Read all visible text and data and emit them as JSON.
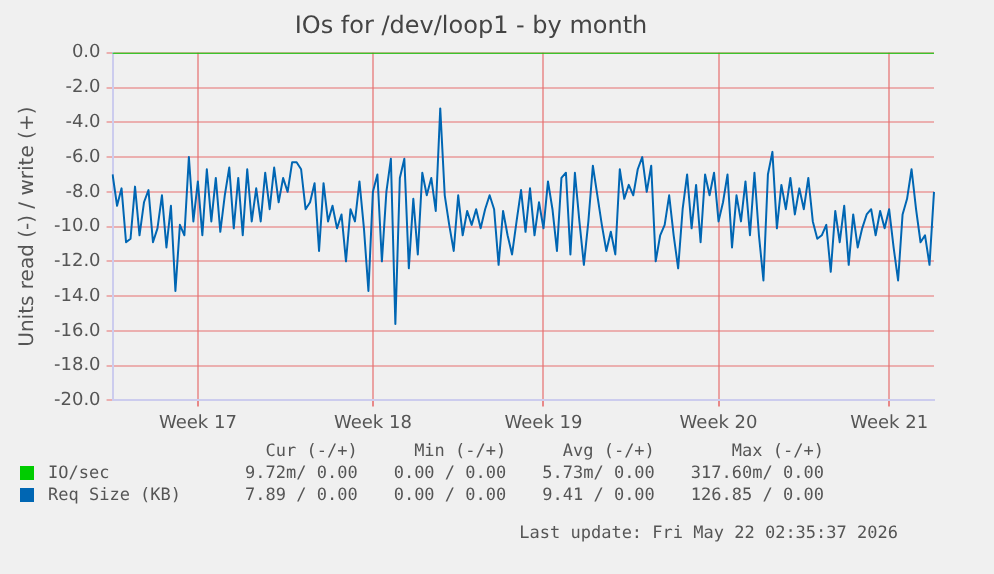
{
  "chart_data": {
    "type": "line",
    "title": "IOs for /dev/loop1 - by month",
    "ylabel": "Units read (-) / write (+)",
    "categories": [
      null,
      null,
      null,
      null,
      null,
      null,
      null,
      null,
      null,
      null,
      null,
      null,
      null,
      null,
      null,
      null,
      null,
      null,
      null,
      "Week 17",
      null,
      null,
      null,
      null,
      null,
      null,
      null,
      null,
      null,
      null,
      null,
      null,
      null,
      null,
      null,
      null,
      null,
      null,
      null,
      null,
      null,
      null,
      null,
      null,
      null,
      null,
      null,
      null,
      null,
      null,
      null,
      null,
      null,
      null,
      null,
      null,
      null,
      null,
      "Week 18",
      null,
      null,
      null,
      null,
      null,
      null,
      null,
      null,
      null,
      null,
      null,
      null,
      null,
      null,
      null,
      null,
      null,
      null,
      null,
      null,
      null,
      null,
      null,
      null,
      null,
      null,
      null,
      null,
      null,
      null,
      null,
      null,
      null,
      null,
      null,
      null,
      null,
      "Week 19",
      null,
      null,
      null,
      null,
      null,
      null,
      null,
      null,
      null,
      null,
      null,
      null,
      null,
      null,
      null,
      null,
      null,
      null,
      null,
      null,
      null,
      null,
      null,
      null,
      null,
      null,
      null,
      null,
      null,
      null,
      null,
      null,
      null,
      null,
      null,
      null,
      null,
      null,
      "Week 20",
      null,
      null,
      null,
      null,
      null,
      null,
      null,
      null,
      null,
      null,
      null,
      null,
      null,
      null,
      null,
      null,
      null,
      null,
      null,
      null,
      null,
      null,
      null,
      null,
      null,
      null,
      null,
      null,
      null,
      null,
      null,
      null,
      null,
      null,
      null,
      null,
      null,
      "Week 21",
      null,
      null,
      null,
      null,
      null,
      null,
      null,
      null,
      null,
      null
    ],
    "ylim": [
      -20,
      0
    ],
    "yticks": [
      {
        "value": 0,
        "label": "0.0"
      },
      {
        "value": -2,
        "label": "-2.0"
      },
      {
        "value": -4,
        "label": "-4.0"
      },
      {
        "value": -6,
        "label": "-6.0"
      },
      {
        "value": -8,
        "label": "-8.0"
      },
      {
        "value": -10,
        "label": "-10.0"
      },
      {
        "value": -12,
        "label": "-12.0"
      },
      {
        "value": -14,
        "label": "-14.0"
      },
      {
        "value": -16,
        "label": "-16.0"
      },
      {
        "value": -18,
        "label": "-18.0"
      },
      {
        "value": -20,
        "label": "-20.0"
      }
    ],
    "grid": true,
    "legend": "bottom",
    "marker": "none",
    "series": [
      {
        "name": "IO/sec",
        "color": "#00cc00",
        "values": [
          0,
          0,
          0,
          0,
          0,
          0,
          0,
          0,
          0,
          0,
          0,
          0,
          0,
          0,
          0,
          0,
          0,
          0,
          0,
          0,
          0,
          0,
          0,
          0,
          0,
          0,
          0,
          0,
          0,
          0,
          0,
          0,
          0,
          0,
          0,
          0,
          0,
          0,
          0,
          0,
          0,
          0,
          0,
          0,
          0,
          0,
          0,
          0,
          0,
          0,
          0,
          0,
          0,
          0,
          0,
          0,
          0,
          0,
          0,
          0,
          0,
          0,
          0,
          0,
          0,
          0,
          0,
          0,
          0,
          0,
          0,
          0,
          0,
          0,
          0,
          0,
          0,
          0,
          0,
          0,
          0,
          0,
          0,
          0,
          0,
          0,
          0,
          0,
          0,
          0,
          0,
          0,
          0,
          0,
          0,
          0,
          0,
          0,
          0,
          0,
          0,
          0,
          0,
          0,
          0,
          0,
          0,
          0,
          0,
          0,
          0,
          0,
          0,
          0,
          0,
          0,
          0,
          0,
          0,
          0,
          0,
          0,
          0,
          0,
          0,
          0,
          0,
          0,
          0,
          0,
          0,
          0,
          0,
          0,
          0,
          0,
          0,
          0,
          0,
          0,
          0,
          0,
          0,
          0,
          0,
          0,
          0,
          0,
          0,
          0,
          0,
          0,
          0,
          0,
          0,
          0,
          0,
          0,
          0,
          0,
          0,
          0,
          0,
          0,
          0,
          0,
          0,
          0,
          0,
          0,
          0,
          0,
          0,
          0,
          0,
          0,
          0,
          0,
          0,
          0,
          0,
          0,
          0,
          0
        ]
      },
      {
        "name": "Req Size (KB)",
        "color": "#0066b3",
        "values": [
          -7.0,
          -8.8,
          -7.8,
          -10.9,
          -10.7,
          -7.7,
          -10.5,
          -8.6,
          -7.9,
          -10.9,
          -10.1,
          -8.2,
          -11.2,
          -8.8,
          -13.7,
          -9.9,
          -10.5,
          -6.0,
          -9.7,
          -7.4,
          -10.5,
          -6.7,
          -9.7,
          -7.2,
          -10.3,
          -8.2,
          -6.6,
          -10.1,
          -7.2,
          -10.5,
          -6.7,
          -9.7,
          -7.8,
          -9.7,
          -6.9,
          -9.0,
          -6.6,
          -8.6,
          -7.2,
          -8.0,
          -6.3,
          -6.3,
          -6.7,
          -9.0,
          -8.6,
          -7.5,
          -11.4,
          -7.5,
          -9.7,
          -8.8,
          -10.1,
          -9.3,
          -12.0,
          -9.0,
          -9.7,
          -7.4,
          -10.1,
          -13.7,
          -8.0,
          -7.0,
          -12.0,
          -8.0,
          -6.1,
          -15.6,
          -7.2,
          -6.1,
          -12.4,
          -8.4,
          -11.6,
          -6.9,
          -8.2,
          -7.2,
          -9.1,
          -3.2,
          -8.2,
          -9.9,
          -11.4,
          -8.2,
          -10.5,
          -9.1,
          -9.9,
          -9.0,
          -10.1,
          -9.0,
          -8.2,
          -9.0,
          -12.2,
          -9.1,
          -10.5,
          -11.6,
          -9.7,
          -7.9,
          -10.3,
          -7.8,
          -10.5,
          -8.6,
          -10.1,
          -7.4,
          -9.0,
          -11.4,
          -7.2,
          -6.9,
          -11.6,
          -6.9,
          -9.7,
          -12.2,
          -9.7,
          -6.5,
          -8.2,
          -9.9,
          -11.4,
          -10.3,
          -11.6,
          -6.7,
          -8.4,
          -7.6,
          -8.2,
          -6.7,
          -6.0,
          -8.0,
          -6.5,
          -12.0,
          -10.5,
          -9.9,
          -8.2,
          -10.5,
          -12.4,
          -9.0,
          -7.0,
          -10.1,
          -7.6,
          -10.9,
          -7.0,
          -8.2,
          -6.9,
          -9.7,
          -8.6,
          -7.0,
          -11.2,
          -8.2,
          -9.7,
          -7.4,
          -10.5,
          -6.9,
          -10.5,
          -13.1,
          -7.0,
          -5.7,
          -10.1,
          -7.6,
          -9.0,
          -7.2,
          -9.3,
          -7.8,
          -9.0,
          -7.2,
          -9.7,
          -10.7,
          -10.5,
          -9.9,
          -12.6,
          -9.1,
          -10.9,
          -8.8,
          -12.2,
          -9.3,
          -11.2,
          -10.1,
          -9.3,
          -9.0,
          -10.5,
          -9.1,
          -10.1,
          -9.0,
          -11.2,
          -13.1,
          -9.3,
          -8.4,
          -6.7,
          -9.0,
          -10.9,
          -10.5,
          -12.2,
          -8.0
        ]
      }
    ],
    "annotations": [
      "Cur (-/+)",
      "Min (-/+)",
      "Avg (-/+)",
      "Max (-/+)",
      "9.72m/ 0.00",
      "0.00 / 0.00",
      "5.73m/ 0.00",
      "317.60m/ 0.00",
      "7.89 / 0.00",
      "0.00 / 0.00",
      "9.41 / 0.00",
      "126.85 / 0.00",
      "Last update: Fri May 22 02:35:37 2026"
    ]
  }
}
